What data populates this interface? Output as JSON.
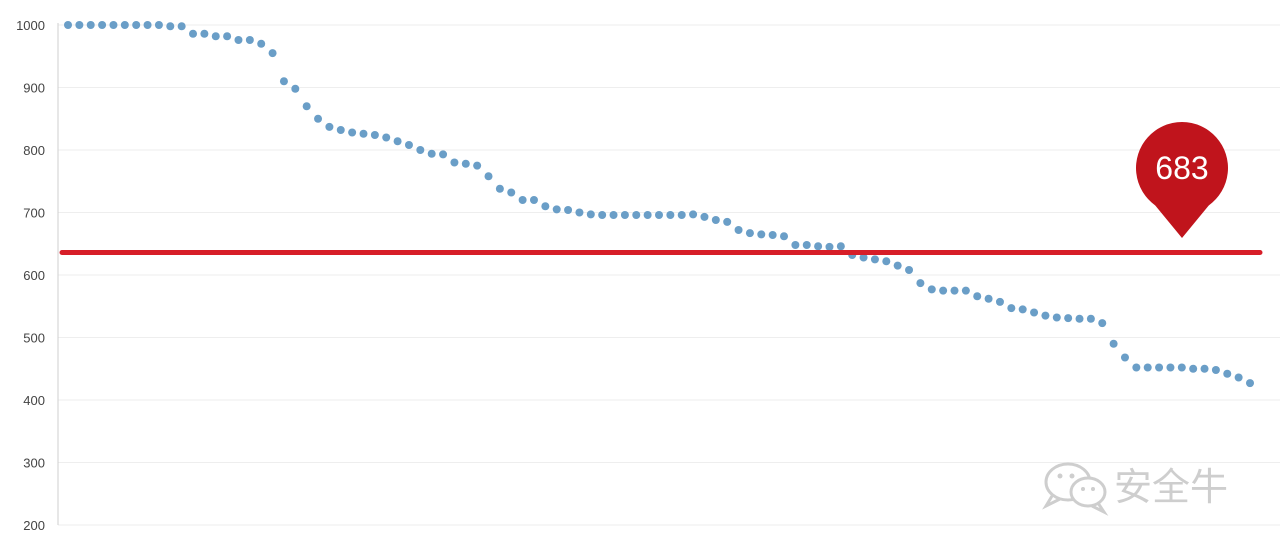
{
  "chart_data": {
    "type": "scatter",
    "ylim": [
      200,
      1000
    ],
    "yticks": [
      200,
      300,
      400,
      500,
      600,
      700,
      800,
      900,
      1000
    ],
    "grid": true,
    "series": [
      {
        "color": "#6a9ec7",
        "values": [
          1000,
          1000,
          1000,
          1000,
          1000,
          1000,
          1000,
          1000,
          1000,
          998,
          998,
          986,
          986,
          982,
          982,
          976,
          976,
          970,
          955,
          910,
          898,
          870,
          850,
          837,
          832,
          828,
          826,
          824,
          820,
          814,
          808,
          800,
          794,
          793,
          780,
          778,
          775,
          758,
          738,
          732,
          720,
          720,
          710,
          705,
          704,
          700,
          697,
          696,
          696,
          696,
          696,
          696,
          696,
          696,
          696,
          697,
          693,
          688,
          685,
          672,
          667,
          665,
          664,
          662,
          648,
          648,
          646,
          645,
          646,
          632,
          628,
          625,
          622,
          615,
          608,
          587,
          577,
          575,
          575,
          575,
          566,
          562,
          557,
          547,
          545,
          540,
          535,
          532,
          531,
          530,
          530,
          523,
          490,
          468,
          452,
          452,
          452,
          452,
          452,
          450,
          450,
          448,
          442,
          436,
          427
        ]
      }
    ],
    "reference_line": {
      "value": 636,
      "color": "#d71e28"
    },
    "marker": {
      "label": "683",
      "color": "#c0141c"
    }
  },
  "watermark": {
    "text": "安全牛",
    "icon": "wechat-icon"
  }
}
